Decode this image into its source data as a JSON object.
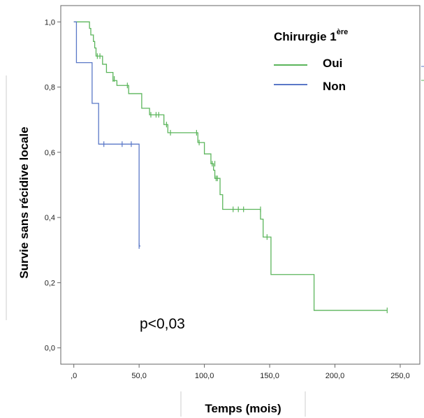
{
  "chart_data": {
    "type": "line",
    "subtype": "kaplan-meier-step",
    "xlabel": "Temps (mois)",
    "ylabel": "Survie sans récidive locale",
    "xlim": [
      -10,
      265
    ],
    "ylim": [
      -0.05,
      1.05
    ],
    "xticks": [
      0,
      50,
      100,
      150,
      200,
      250
    ],
    "xtick_labels": [
      ",0",
      "50,0",
      "100,0",
      "150,0",
      "200,0",
      "250,0"
    ],
    "yticks": [
      0,
      0.2,
      0.4,
      0.6,
      0.8,
      1.0
    ],
    "ytick_labels": [
      "0,0",
      "0,2",
      "0,4",
      "0,6",
      "0,8",
      "1,0"
    ],
    "grid": false,
    "legend": {
      "title": "Chirurgie 1",
      "title_superscript": "ère",
      "position": "top-right"
    },
    "series": [
      {
        "name": "Oui",
        "color": "#5bb55b",
        "steps": [
          [
            0,
            1.0
          ],
          [
            12,
            0.98
          ],
          [
            13,
            0.96
          ],
          [
            15,
            0.94
          ],
          [
            16,
            0.92
          ],
          [
            17,
            0.895
          ],
          [
            22,
            0.87
          ],
          [
            25,
            0.845
          ],
          [
            30,
            0.82
          ],
          [
            33,
            0.805
          ],
          [
            42,
            0.78
          ],
          [
            52,
            0.735
          ],
          [
            58,
            0.715
          ],
          [
            69,
            0.685
          ],
          [
            72,
            0.66
          ],
          [
            95,
            0.63
          ],
          [
            100,
            0.595
          ],
          [
            105,
            0.565
          ],
          [
            107,
            0.545
          ],
          [
            108,
            0.52
          ],
          [
            112,
            0.47
          ],
          [
            114,
            0.425
          ],
          [
            143,
            0.395
          ],
          [
            145,
            0.34
          ],
          [
            151,
            0.225
          ],
          [
            184,
            0.115
          ]
        ],
        "end_x": 240,
        "censored": [
          [
            18,
            0.895
          ],
          [
            20,
            0.895
          ],
          [
            30,
            0.825
          ],
          [
            31,
            0.825
          ],
          [
            41,
            0.805
          ],
          [
            59,
            0.715
          ],
          [
            63,
            0.715
          ],
          [
            65,
            0.715
          ],
          [
            71,
            0.685
          ],
          [
            74,
            0.66
          ],
          [
            94,
            0.66
          ],
          [
            96,
            0.63
          ],
          [
            106,
            0.565
          ],
          [
            108,
            0.565
          ],
          [
            109,
            0.52
          ],
          [
            110,
            0.52
          ],
          [
            122,
            0.425
          ],
          [
            126,
            0.425
          ],
          [
            130,
            0.425
          ],
          [
            143,
            0.425
          ],
          [
            148,
            0.34
          ],
          [
            240,
            0.115
          ]
        ]
      },
      {
        "name": "Non",
        "color": "#5a78c7",
        "steps": [
          [
            0,
            1.0
          ],
          [
            2,
            0.875
          ],
          [
            14,
            0.75
          ],
          [
            19,
            0.625
          ],
          [
            50,
            0.3125
          ]
        ],
        "end_x": 51,
        "censored": [
          [
            23,
            0.625
          ],
          [
            37,
            0.625
          ],
          [
            44,
            0.625
          ],
          [
            50,
            0.3125
          ]
        ]
      }
    ],
    "annotations": [
      {
        "text": "p<0,03"
      }
    ]
  }
}
